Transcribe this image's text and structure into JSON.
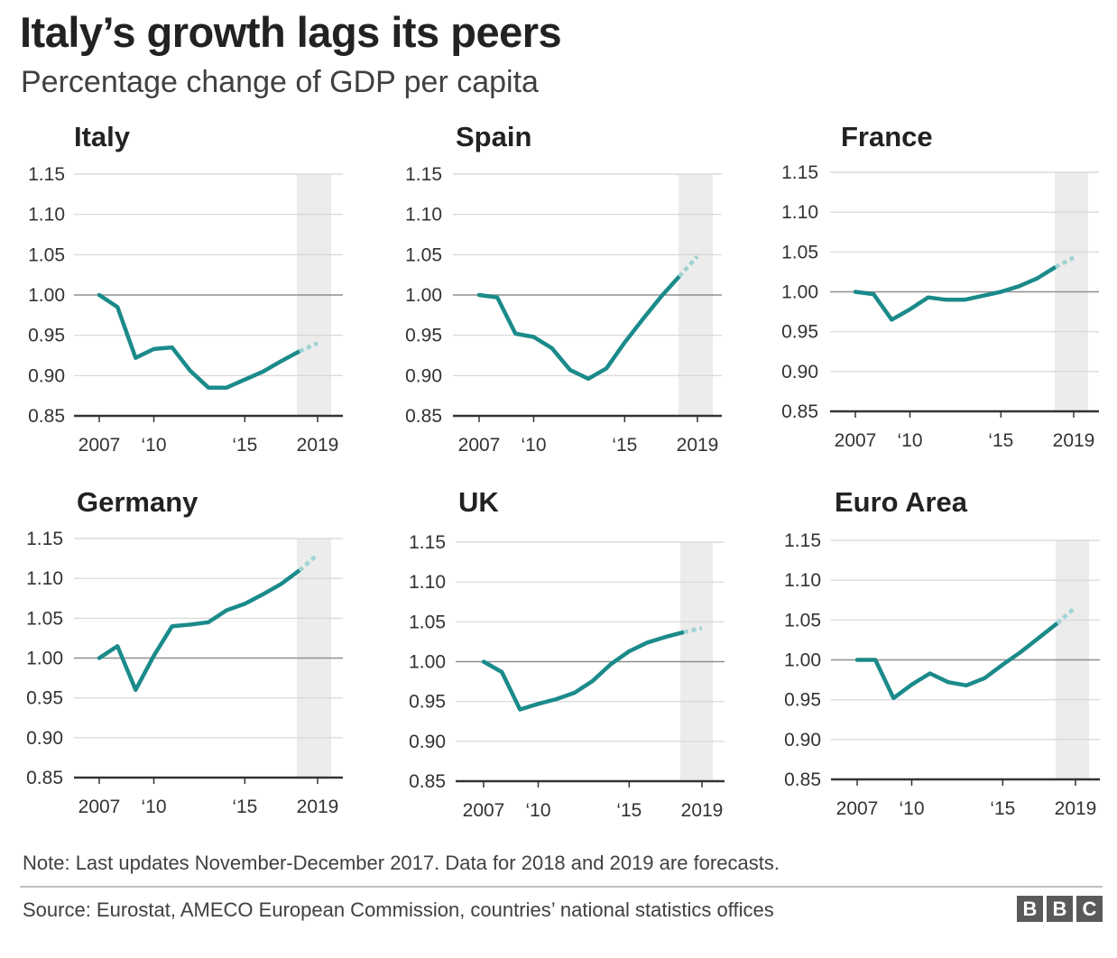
{
  "title": "Italy’s growth lags its peers",
  "subtitle": "Percentage change of GDP per capita",
  "note": "Note: Last updates November-December 2017. Data for 2018 and 2019 are forecasts.",
  "source": "Source: Eurostat, AMECO European Commission, countries’ national statistics offices",
  "logo": [
    "B",
    "B",
    "C"
  ],
  "colors": {
    "line": "#1b8a8a",
    "forecast": "#9fd2d2",
    "shade": "#ececec",
    "grid": "#d4d4d4",
    "baseline": "#8f8f8f",
    "axis": "#333333"
  },
  "chart_data": [
    {
      "type": "line",
      "title": "Italy",
      "ylim": [
        0.85,
        1.15
      ],
      "yticks": [
        "1.15",
        "1.10",
        "1.05",
        "1.00",
        "0.95",
        "0.90",
        "0.85"
      ],
      "xticks": [
        "2007",
        "‘10",
        "‘15",
        "2019"
      ],
      "xtick_years": [
        2007,
        2010,
        2015,
        2019
      ],
      "forecast_shade": [
        2018,
        2019
      ],
      "x": [
        2007,
        2008,
        2009,
        2010,
        2011,
        2012,
        2013,
        2014,
        2015,
        2016,
        2017,
        2018,
        2019
      ],
      "values": [
        1.0,
        0.985,
        0.922,
        0.933,
        0.935,
        0.906,
        0.885,
        0.885,
        0.895,
        0.905,
        0.918,
        0.93,
        0.94
      ]
    },
    {
      "type": "line",
      "title": "Spain",
      "ylim": [
        0.85,
        1.15
      ],
      "yticks": [
        "1.15",
        "1.10",
        "1.05",
        "1.00",
        "0.95",
        "0.90",
        "0.85"
      ],
      "xticks": [
        "2007",
        "‘10",
        "‘15",
        "2019"
      ],
      "xtick_years": [
        2007,
        2010,
        2015,
        2019
      ],
      "forecast_shade": [
        2018,
        2019
      ],
      "x": [
        2007,
        2008,
        2009,
        2010,
        2011,
        2012,
        2013,
        2014,
        2015,
        2016,
        2017,
        2018,
        2019
      ],
      "values": [
        1.0,
        0.997,
        0.952,
        0.948,
        0.934,
        0.907,
        0.896,
        0.909,
        0.941,
        0.97,
        0.998,
        1.023,
        1.048
      ]
    },
    {
      "type": "line",
      "title": "France",
      "ylim": [
        0.85,
        1.15
      ],
      "yticks": [
        "1.15",
        "1.10",
        "1.05",
        "1.00",
        "0.95",
        "0.90",
        "0.85"
      ],
      "xticks": [
        "2007",
        "‘10",
        "‘15",
        "2019"
      ],
      "xtick_years": [
        2007,
        2010,
        2015,
        2019
      ],
      "forecast_shade": [
        2018,
        2019
      ],
      "x": [
        2007,
        2008,
        2009,
        2010,
        2011,
        2012,
        2013,
        2014,
        2015,
        2016,
        2017,
        2018,
        2019
      ],
      "values": [
        1.0,
        0.997,
        0.965,
        0.978,
        0.993,
        0.99,
        0.99,
        0.995,
        1.0,
        1.007,
        1.017,
        1.031,
        1.043
      ]
    },
    {
      "type": "line",
      "title": "Germany",
      "ylim": [
        0.85,
        1.15
      ],
      "yticks": [
        "1.15",
        "1.10",
        "1.05",
        "1.00",
        "0.95",
        "0.90",
        "0.85"
      ],
      "xticks": [
        "2007",
        "‘10",
        "‘15",
        "2019"
      ],
      "xtick_years": [
        2007,
        2010,
        2015,
        2019
      ],
      "forecast_shade": [
        2018,
        2019
      ],
      "x": [
        2007,
        2008,
        2009,
        2010,
        2011,
        2012,
        2013,
        2014,
        2015,
        2016,
        2017,
        2018,
        2019
      ],
      "values": [
        1.0,
        1.015,
        0.96,
        1.003,
        1.04,
        1.042,
        1.045,
        1.06,
        1.068,
        1.08,
        1.093,
        1.11,
        1.13
      ]
    },
    {
      "type": "line",
      "title": "UK",
      "ylim": [
        0.85,
        1.15
      ],
      "yticks": [
        "1.15",
        "1.10",
        "1.05",
        "1.00",
        "0.95",
        "0.90",
        "0.85"
      ],
      "xticks": [
        "2007",
        "‘10",
        "‘15",
        "2019"
      ],
      "xtick_years": [
        2007,
        2010,
        2015,
        2019
      ],
      "forecast_shade": [
        2018,
        2019
      ],
      "x": [
        2007,
        2008,
        2009,
        2010,
        2011,
        2012,
        2013,
        2014,
        2015,
        2016,
        2017,
        2018,
        2019
      ],
      "values": [
        1.0,
        0.987,
        0.94,
        0.947,
        0.953,
        0.961,
        0.976,
        0.997,
        1.013,
        1.024,
        1.031,
        1.037,
        1.042
      ]
    },
    {
      "type": "line",
      "title": "Euro Area",
      "ylim": [
        0.85,
        1.15
      ],
      "yticks": [
        "1.15",
        "1.10",
        "1.05",
        "1.00",
        "0.95",
        "0.90",
        "0.85"
      ],
      "xticks": [
        "2007",
        "‘10",
        "‘15",
        "2019"
      ],
      "xtick_years": [
        2007,
        2010,
        2015,
        2019
      ],
      "forecast_shade": [
        2018,
        2019
      ],
      "x": [
        2007,
        2008,
        2009,
        2010,
        2011,
        2012,
        2013,
        2014,
        2015,
        2016,
        2017,
        2018,
        2019
      ],
      "values": [
        1.0,
        1.0,
        0.952,
        0.969,
        0.983,
        0.972,
        0.968,
        0.977,
        0.994,
        1.01,
        1.028,
        1.046,
        1.066
      ]
    }
  ]
}
